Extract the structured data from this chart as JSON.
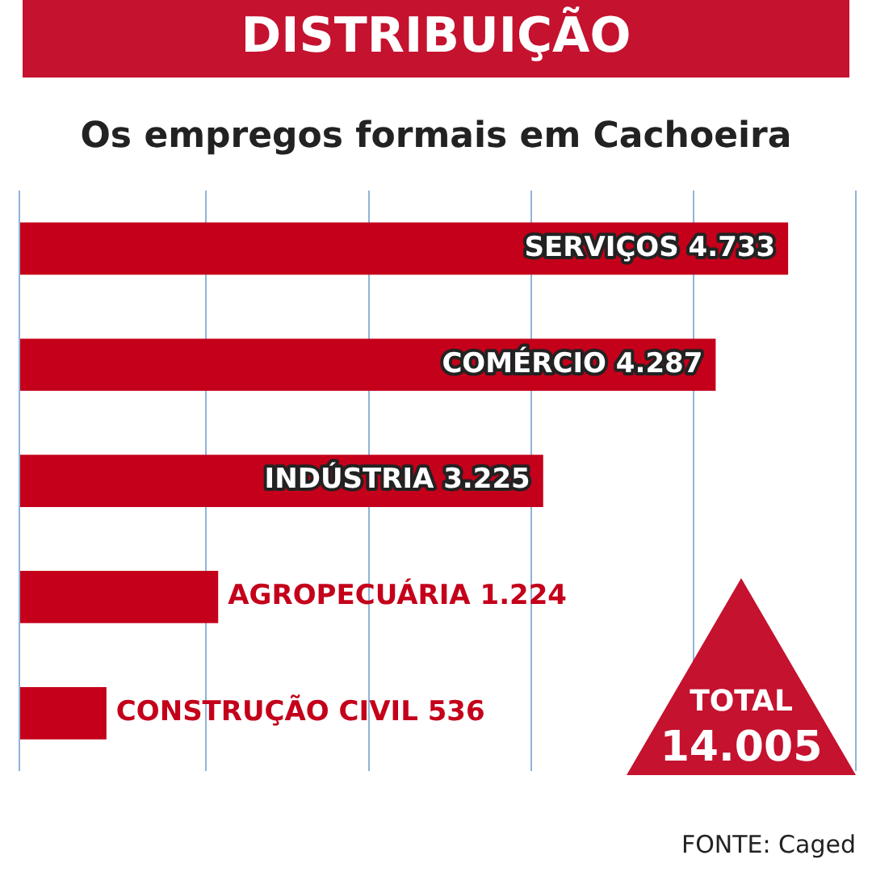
{
  "chart_data": {
    "type": "bar",
    "orientation": "horizontal",
    "title": "DISTRIBUIÇÃO",
    "subtitle": "Os empregos formais em Cachoeira",
    "categories": [
      "SERVIÇOS",
      "COMÉRCIO",
      "INDÚSTRIA",
      "AGROPECUÁRIA",
      "CONSTRUÇÃO CIVIL"
    ],
    "values": [
      4733,
      4287,
      3225,
      1224,
      536
    ],
    "value_labels": [
      "4.733",
      "4.287",
      "3.225",
      "1.224",
      "536"
    ],
    "color": "#c4001a",
    "xlim": [
      0,
      5150
    ],
    "xticks": [
      {
        "value": 0,
        "label": null
      },
      {
        "value": 1150,
        "label": null
      },
      {
        "value": 2150,
        "label": null
      },
      {
        "value": 3150,
        "label": null
      },
      {
        "value": 4150,
        "label": null
      },
      {
        "value": 5150,
        "label": null
      }
    ],
    "grid": "x",
    "legend": false,
    "annotations": [
      "TOTAL",
      "14.005",
      "FONTE: Caged"
    ]
  }
}
